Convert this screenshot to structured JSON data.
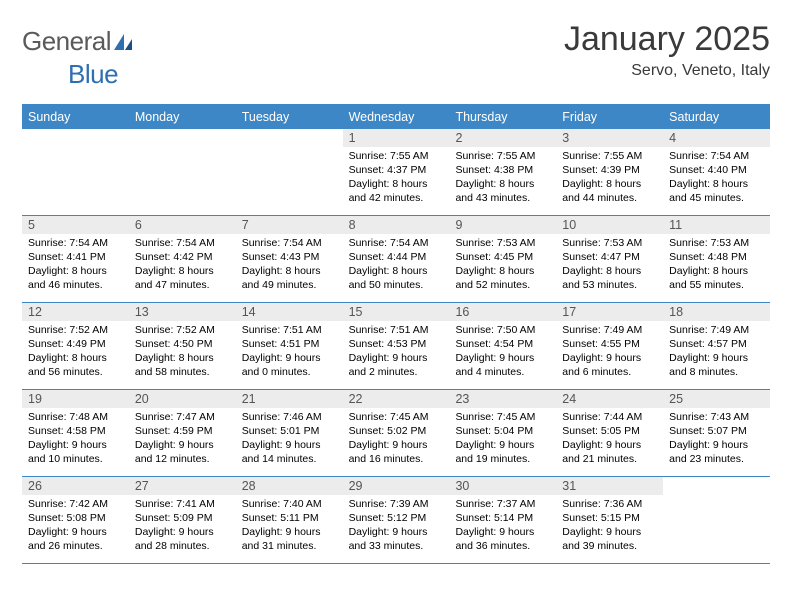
{
  "brand": {
    "part1": "General",
    "part2": "Blue"
  },
  "title": "January 2025",
  "location": "Servo, Veneto, Italy",
  "colors": {
    "headerBar": "#3d87c7",
    "dayNumBg": "#ececec",
    "logoGray": "#5a5a5a",
    "logoBlue": "#2f6fb0",
    "ruleColor": "#3d87c7"
  },
  "weekdays": [
    "Sunday",
    "Monday",
    "Tuesday",
    "Wednesday",
    "Thursday",
    "Friday",
    "Saturday"
  ],
  "weeks": [
    [
      {
        "blank": true
      },
      {
        "blank": true
      },
      {
        "blank": true
      },
      {
        "n": "1",
        "sunrise": "7:55 AM",
        "sunset": "4:37 PM",
        "dh": 8,
        "dm": 42
      },
      {
        "n": "2",
        "sunrise": "7:55 AM",
        "sunset": "4:38 PM",
        "dh": 8,
        "dm": 43
      },
      {
        "n": "3",
        "sunrise": "7:55 AM",
        "sunset": "4:39 PM",
        "dh": 8,
        "dm": 44
      },
      {
        "n": "4",
        "sunrise": "7:54 AM",
        "sunset": "4:40 PM",
        "dh": 8,
        "dm": 45
      }
    ],
    [
      {
        "n": "5",
        "sunrise": "7:54 AM",
        "sunset": "4:41 PM",
        "dh": 8,
        "dm": 46
      },
      {
        "n": "6",
        "sunrise": "7:54 AM",
        "sunset": "4:42 PM",
        "dh": 8,
        "dm": 47
      },
      {
        "n": "7",
        "sunrise": "7:54 AM",
        "sunset": "4:43 PM",
        "dh": 8,
        "dm": 49
      },
      {
        "n": "8",
        "sunrise": "7:54 AM",
        "sunset": "4:44 PM",
        "dh": 8,
        "dm": 50
      },
      {
        "n": "9",
        "sunrise": "7:53 AM",
        "sunset": "4:45 PM",
        "dh": 8,
        "dm": 52
      },
      {
        "n": "10",
        "sunrise": "7:53 AM",
        "sunset": "4:47 PM",
        "dh": 8,
        "dm": 53
      },
      {
        "n": "11",
        "sunrise": "7:53 AM",
        "sunset": "4:48 PM",
        "dh": 8,
        "dm": 55
      }
    ],
    [
      {
        "n": "12",
        "sunrise": "7:52 AM",
        "sunset": "4:49 PM",
        "dh": 8,
        "dm": 56
      },
      {
        "n": "13",
        "sunrise": "7:52 AM",
        "sunset": "4:50 PM",
        "dh": 8,
        "dm": 58
      },
      {
        "n": "14",
        "sunrise": "7:51 AM",
        "sunset": "4:51 PM",
        "dh": 9,
        "dm": 0
      },
      {
        "n": "15",
        "sunrise": "7:51 AM",
        "sunset": "4:53 PM",
        "dh": 9,
        "dm": 2
      },
      {
        "n": "16",
        "sunrise": "7:50 AM",
        "sunset": "4:54 PM",
        "dh": 9,
        "dm": 4
      },
      {
        "n": "17",
        "sunrise": "7:49 AM",
        "sunset": "4:55 PM",
        "dh": 9,
        "dm": 6
      },
      {
        "n": "18",
        "sunrise": "7:49 AM",
        "sunset": "4:57 PM",
        "dh": 9,
        "dm": 8
      }
    ],
    [
      {
        "n": "19",
        "sunrise": "7:48 AM",
        "sunset": "4:58 PM",
        "dh": 9,
        "dm": 10
      },
      {
        "n": "20",
        "sunrise": "7:47 AM",
        "sunset": "4:59 PM",
        "dh": 9,
        "dm": 12
      },
      {
        "n": "21",
        "sunrise": "7:46 AM",
        "sunset": "5:01 PM",
        "dh": 9,
        "dm": 14
      },
      {
        "n": "22",
        "sunrise": "7:45 AM",
        "sunset": "5:02 PM",
        "dh": 9,
        "dm": 16
      },
      {
        "n": "23",
        "sunrise": "7:45 AM",
        "sunset": "5:04 PM",
        "dh": 9,
        "dm": 19
      },
      {
        "n": "24",
        "sunrise": "7:44 AM",
        "sunset": "5:05 PM",
        "dh": 9,
        "dm": 21
      },
      {
        "n": "25",
        "sunrise": "7:43 AM",
        "sunset": "5:07 PM",
        "dh": 9,
        "dm": 23
      }
    ],
    [
      {
        "n": "26",
        "sunrise": "7:42 AM",
        "sunset": "5:08 PM",
        "dh": 9,
        "dm": 26
      },
      {
        "n": "27",
        "sunrise": "7:41 AM",
        "sunset": "5:09 PM",
        "dh": 9,
        "dm": 28
      },
      {
        "n": "28",
        "sunrise": "7:40 AM",
        "sunset": "5:11 PM",
        "dh": 9,
        "dm": 31
      },
      {
        "n": "29",
        "sunrise": "7:39 AM",
        "sunset": "5:12 PM",
        "dh": 9,
        "dm": 33
      },
      {
        "n": "30",
        "sunrise": "7:37 AM",
        "sunset": "5:14 PM",
        "dh": 9,
        "dm": 36
      },
      {
        "n": "31",
        "sunrise": "7:36 AM",
        "sunset": "5:15 PM",
        "dh": 9,
        "dm": 39
      },
      {
        "blank": true
      }
    ]
  ]
}
